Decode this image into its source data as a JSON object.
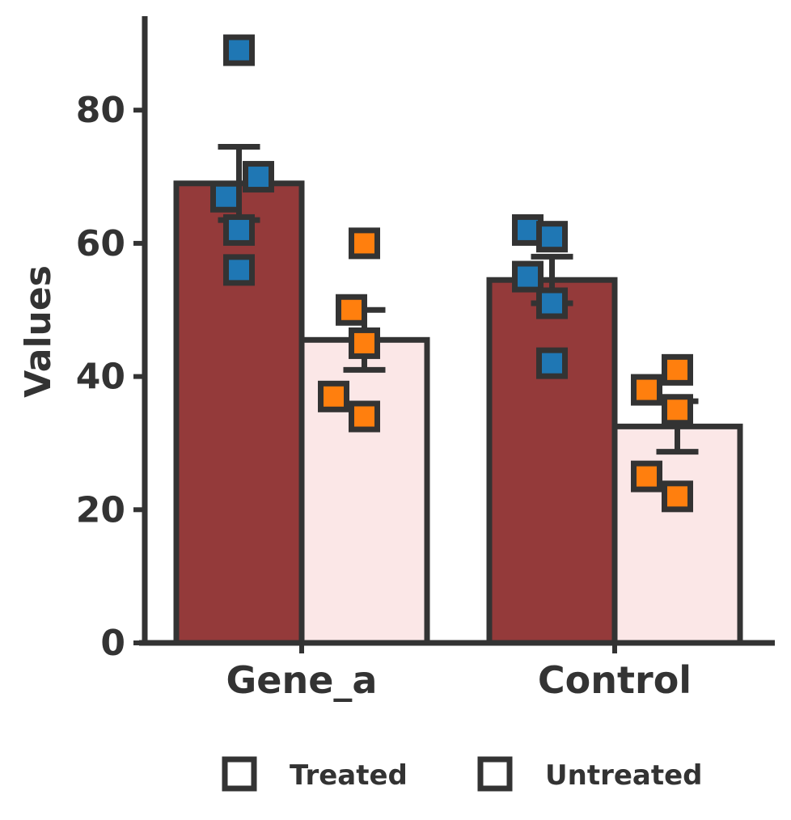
{
  "chart_data": {
    "type": "bar",
    "categories": [
      "Gene_a",
      "Control"
    ],
    "ylabel": "Values",
    "xlabel": "",
    "ylim": [
      0,
      95
    ],
    "yticks": [
      0,
      20,
      40,
      60,
      80
    ],
    "grid": false,
    "legend_position": "bottom",
    "colors": {
      "axis": "#333333",
      "treated_bar": "#943a3a",
      "untreated_bar": "#fbe7e7",
      "treated_point": "#1f77b4",
      "untreated_point": "#ff7f0e"
    },
    "series": [
      {
        "name": "Treated",
        "values": [
          69,
          54.5
        ],
        "error": [
          5.5,
          3.5
        ],
        "points": [
          [
            89,
            70,
            67,
            62,
            56
          ],
          [
            62,
            61,
            55,
            51,
            42
          ]
        ]
      },
      {
        "name": "Untreated",
        "values": [
          45.5,
          32.5
        ],
        "error": [
          4.5,
          3.8
        ],
        "points": [
          [
            60,
            50,
            45,
            37,
            34
          ],
          [
            41,
            38,
            35,
            25,
            22
          ]
        ]
      }
    ]
  }
}
